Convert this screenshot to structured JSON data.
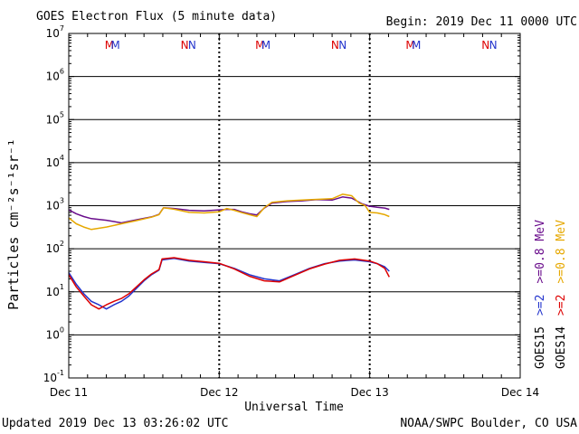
{
  "chart_data": {
    "type": "line",
    "title": "GOES Electron Flux (5 minute data)",
    "begin_label": "Begin: 2019 Dec 11 0000 UTC",
    "xlabel": "Universal Time",
    "ylabel": "Particles cm⁻²s⁻¹sr⁻¹",
    "updated": "Updated 2019 Dec 13 03:26:02 UTC",
    "credit": "NOAA/SWPC Boulder, CO USA",
    "x_unit": "days since 2019 Dec 11 00:00 UTC",
    "x_range": [
      0,
      3
    ],
    "x_ticks": [
      {
        "x": 0,
        "label": "Dec 11"
      },
      {
        "x": 1,
        "label": "Dec 12"
      },
      {
        "x": 2,
        "label": "Dec 13"
      },
      {
        "x": 3,
        "label": "Dec 14"
      }
    ],
    "y_scale": "log",
    "y_range_exponent": [
      -1,
      7
    ],
    "y_tick_exponents": [
      -1,
      0,
      1,
      2,
      3,
      4,
      5,
      6,
      7
    ],
    "y_tick_base": "10",
    "threshold": {
      "value": 1000,
      "style": "dashed"
    },
    "day_markers": [
      1,
      2
    ],
    "satellite_markers": [
      {
        "x": 0.27,
        "label": "M",
        "color": "#dd0000"
      },
      {
        "x": 0.31,
        "label": "M",
        "color": "#2233cc"
      },
      {
        "x": 0.77,
        "label": "N",
        "color": "#dd0000"
      },
      {
        "x": 0.82,
        "label": "N",
        "color": "#2233cc"
      },
      {
        "x": 1.27,
        "label": "M",
        "color": "#dd0000"
      },
      {
        "x": 1.31,
        "label": "M",
        "color": "#2233cc"
      },
      {
        "x": 1.77,
        "label": "N",
        "color": "#dd0000"
      },
      {
        "x": 1.82,
        "label": "N",
        "color": "#2233cc"
      },
      {
        "x": 2.27,
        "label": "M",
        "color": "#dd0000"
      },
      {
        "x": 2.31,
        "label": "M",
        "color": "#2233cc"
      },
      {
        "x": 2.77,
        "label": "N",
        "color": "#dd0000"
      },
      {
        "x": 2.82,
        "label": "N",
        "color": "#2233cc"
      }
    ],
    "legend_columns": [
      {
        "sat": "GOES15",
        "e2": ">=2",
        "e08": ">=0.8 MeV",
        "sat_color": "#000000",
        "e2_color": "#2233cc",
        "e08_color": "#6a0d8c"
      },
      {
        "sat": "GOES14",
        "e2": ">=2",
        "e08": ">=0.8 MeV",
        "sat_color": "#000000",
        "e2_color": "#dd0000",
        "e08_color": "#e6a800"
      }
    ],
    "series": [
      {
        "name": "GOES15 >=0.8 MeV",
        "color": "#6a0d8c",
        "points": [
          [
            0,
            800
          ],
          [
            0.05,
            650
          ],
          [
            0.1,
            560
          ],
          [
            0.15,
            500
          ],
          [
            0.25,
            460
          ],
          [
            0.35,
            400
          ],
          [
            0.45,
            470
          ],
          [
            0.55,
            550
          ],
          [
            0.6,
            630
          ],
          [
            0.63,
            900
          ],
          [
            0.7,
            860
          ],
          [
            0.8,
            780
          ],
          [
            0.9,
            760
          ],
          [
            1.0,
            800
          ],
          [
            1.05,
            820
          ],
          [
            1.1,
            820
          ],
          [
            1.15,
            720
          ],
          [
            1.2,
            650
          ],
          [
            1.25,
            610
          ],
          [
            1.3,
            880
          ],
          [
            1.35,
            1150
          ],
          [
            1.45,
            1250
          ],
          [
            1.55,
            1300
          ],
          [
            1.65,
            1380
          ],
          [
            1.75,
            1350
          ],
          [
            1.82,
            1600
          ],
          [
            1.88,
            1500
          ],
          [
            1.95,
            1100
          ],
          [
            2.0,
            970
          ],
          [
            2.05,
            920
          ],
          [
            2.1,
            880
          ],
          [
            2.13,
            820
          ]
        ]
      },
      {
        "name": "GOES14 >=0.8 MeV",
        "color": "#e6a800",
        "points": [
          [
            0,
            520
          ],
          [
            0.05,
            380
          ],
          [
            0.1,
            320
          ],
          [
            0.15,
            280
          ],
          [
            0.25,
            320
          ],
          [
            0.35,
            380
          ],
          [
            0.45,
            450
          ],
          [
            0.55,
            540
          ],
          [
            0.6,
            620
          ],
          [
            0.63,
            900
          ],
          [
            0.7,
            830
          ],
          [
            0.8,
            700
          ],
          [
            0.9,
            680
          ],
          [
            1.0,
            720
          ],
          [
            1.05,
            860
          ],
          [
            1.1,
            780
          ],
          [
            1.15,
            690
          ],
          [
            1.2,
            620
          ],
          [
            1.25,
            560
          ],
          [
            1.3,
            900
          ],
          [
            1.35,
            1200
          ],
          [
            1.45,
            1300
          ],
          [
            1.55,
            1350
          ],
          [
            1.65,
            1400
          ],
          [
            1.75,
            1450
          ],
          [
            1.82,
            1850
          ],
          [
            1.88,
            1700
          ],
          [
            1.93,
            1150
          ],
          [
            1.97,
            1000
          ],
          [
            2.0,
            700
          ],
          [
            2.05,
            680
          ],
          [
            2.1,
            620
          ],
          [
            2.13,
            560
          ]
        ]
      },
      {
        "name": "GOES15 >=2 MeV",
        "color": "#2233cc",
        "points": [
          [
            0,
            28
          ],
          [
            0.05,
            15
          ],
          [
            0.1,
            9
          ],
          [
            0.15,
            6
          ],
          [
            0.2,
            5
          ],
          [
            0.25,
            4
          ],
          [
            0.3,
            5
          ],
          [
            0.35,
            6
          ],
          [
            0.4,
            8
          ],
          [
            0.45,
            12
          ],
          [
            0.5,
            18
          ],
          [
            0.55,
            25
          ],
          [
            0.6,
            32
          ],
          [
            0.62,
            55
          ],
          [
            0.7,
            60
          ],
          [
            0.8,
            52
          ],
          [
            0.9,
            48
          ],
          [
            1.0,
            45
          ],
          [
            1.1,
            35
          ],
          [
            1.2,
            25
          ],
          [
            1.3,
            20
          ],
          [
            1.4,
            18
          ],
          [
            1.5,
            25
          ],
          [
            1.6,
            35
          ],
          [
            1.7,
            45
          ],
          [
            1.8,
            52
          ],
          [
            1.9,
            55
          ],
          [
            2.0,
            50
          ],
          [
            2.05,
            45
          ],
          [
            2.1,
            38
          ],
          [
            2.13,
            30
          ]
        ]
      },
      {
        "name": "GOES14 >=2 MeV",
        "color": "#dd0000",
        "points": [
          [
            0,
            25
          ],
          [
            0.05,
            13
          ],
          [
            0.1,
            8
          ],
          [
            0.15,
            5
          ],
          [
            0.2,
            4
          ],
          [
            0.25,
            5
          ],
          [
            0.3,
            6
          ],
          [
            0.35,
            7
          ],
          [
            0.4,
            9
          ],
          [
            0.45,
            13
          ],
          [
            0.5,
            19
          ],
          [
            0.55,
            26
          ],
          [
            0.6,
            33
          ],
          [
            0.62,
            58
          ],
          [
            0.7,
            62
          ],
          [
            0.8,
            54
          ],
          [
            0.9,
            50
          ],
          [
            1.0,
            46
          ],
          [
            1.1,
            34
          ],
          [
            1.2,
            23
          ],
          [
            1.3,
            18
          ],
          [
            1.4,
            17
          ],
          [
            1.5,
            24
          ],
          [
            1.6,
            34
          ],
          [
            1.7,
            44
          ],
          [
            1.8,
            54
          ],
          [
            1.9,
            58
          ],
          [
            2.0,
            52
          ],
          [
            2.05,
            45
          ],
          [
            2.1,
            35
          ],
          [
            2.13,
            22
          ]
        ]
      }
    ]
  }
}
